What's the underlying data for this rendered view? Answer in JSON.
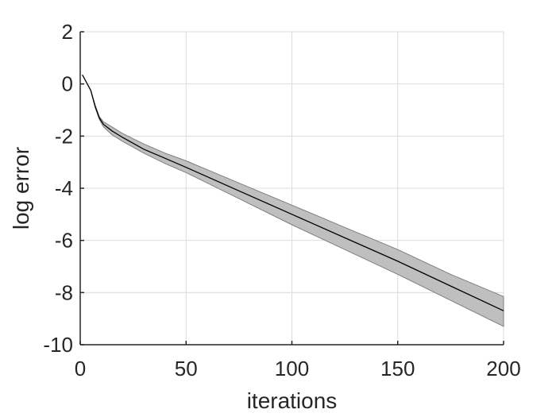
{
  "chart_data": {
    "type": "line",
    "title": "",
    "xlabel": "iterations",
    "ylabel": "log error",
    "xlim": [
      0,
      200
    ],
    "ylim": [
      -10,
      2
    ],
    "xticks": [
      0,
      50,
      100,
      150,
      200
    ],
    "yticks": [
      2,
      0,
      -2,
      -4,
      -6,
      -8,
      -10
    ],
    "grid": true,
    "colors": {
      "line": "#000000",
      "band_fill": "#bfbfbf",
      "band_edge": "#7f7f7f",
      "grid": "#dcdcdc",
      "axis": "#262626"
    },
    "series": [
      {
        "x": [
          1,
          3,
          5,
          7,
          9,
          11,
          15,
          20,
          30,
          40,
          50,
          75,
          100,
          125,
          150,
          175,
          200
        ],
        "y": [
          0.35,
          0.05,
          -0.25,
          -0.85,
          -1.3,
          -1.55,
          -1.8,
          -2.05,
          -2.5,
          -2.85,
          -3.2,
          -4.1,
          -5.0,
          -5.9,
          -6.8,
          -7.75,
          -8.7
        ],
        "lower": [
          0.35,
          0.05,
          -0.25,
          -0.9,
          -1.35,
          -1.65,
          -1.95,
          -2.2,
          -2.65,
          -3.05,
          -3.4,
          -4.4,
          -5.4,
          -6.35,
          -7.3,
          -8.3,
          -9.3
        ],
        "upper": [
          0.35,
          0.05,
          -0.25,
          -0.8,
          -1.25,
          -1.45,
          -1.65,
          -1.9,
          -2.3,
          -2.65,
          -2.95,
          -3.8,
          -4.65,
          -5.5,
          -6.35,
          -7.3,
          -8.15
        ]
      }
    ]
  }
}
